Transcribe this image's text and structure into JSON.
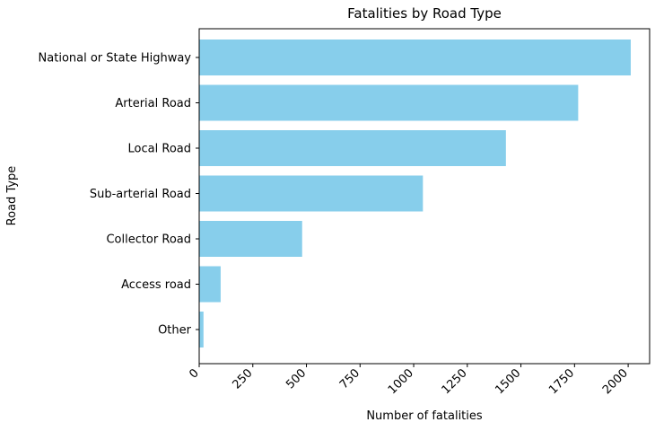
{
  "chart_data": {
    "type": "bar",
    "orientation": "horizontal",
    "title": "Fatalities by Road Type",
    "xlabel": "Number of fatalities",
    "ylabel": "Road Type",
    "categories": [
      "National or State Highway",
      "Arterial Road",
      "Local Road",
      "Sub-arterial Road",
      "Collector Road",
      "Access road",
      "Other"
    ],
    "values": [
      2012,
      1767,
      1430,
      1043,
      480,
      100,
      20
    ],
    "xlim": [
      0,
      2100
    ],
    "xticks": [
      0,
      250,
      500,
      750,
      1000,
      1250,
      1500,
      1750,
      2000
    ],
    "bar_color": "#87ceeb",
    "grid": false,
    "legend": "none"
  }
}
